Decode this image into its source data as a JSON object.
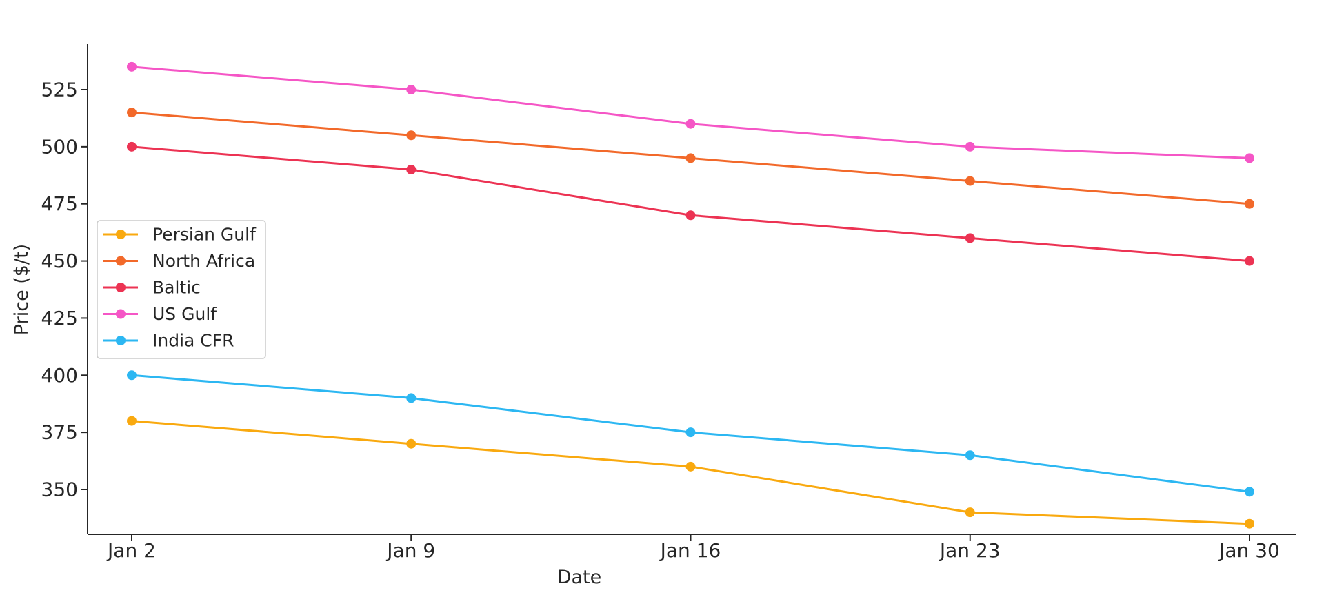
{
  "chart_data": {
    "type": "line",
    "title": "",
    "xlabel": "Date",
    "ylabel": "Price ($/t)",
    "categories": [
      "Jan 2",
      "Jan 9",
      "Jan 16",
      "Jan 23",
      "Jan 30"
    ],
    "yticks": [
      350,
      375,
      400,
      425,
      450,
      475,
      500,
      525
    ],
    "ylim": [
      330,
      540
    ],
    "grid": false,
    "legend_position": "center-left",
    "series": [
      {
        "name": "Persian Gulf",
        "color": "#f9a90f",
        "values": [
          380,
          370,
          360,
          340,
          335
        ]
      },
      {
        "name": "North Africa",
        "color": "#f2692a",
        "values": [
          515,
          505,
          495,
          485,
          475
        ]
      },
      {
        "name": "Baltic",
        "color": "#ec3353",
        "values": [
          500,
          490,
          470,
          460,
          450
        ]
      },
      {
        "name": "US Gulf",
        "color": "#f556c6",
        "values": [
          535,
          525,
          510,
          500,
          495
        ]
      },
      {
        "name": "India CFR",
        "color": "#2cb7f2",
        "values": [
          400,
          390,
          375,
          365,
          349
        ]
      }
    ]
  }
}
